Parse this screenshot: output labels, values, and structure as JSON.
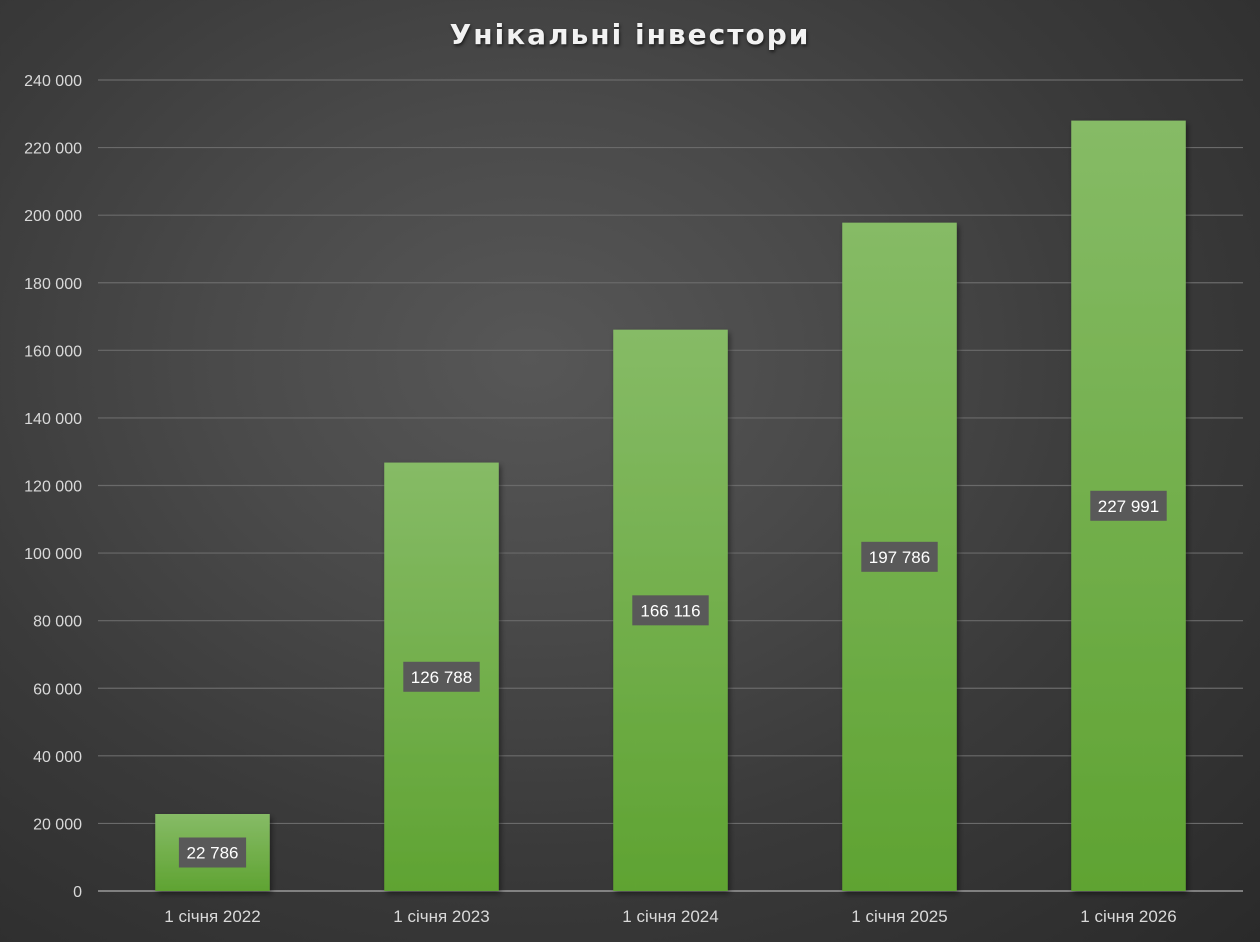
{
  "chart_data": {
    "type": "bar",
    "title": "Унікальні інвестори",
    "xlabel": "",
    "ylabel": "",
    "categories": [
      "1 січня 2022",
      "1 січня 2023",
      "1 січня 2024",
      "1 січня 2025",
      "1 січня 2026"
    ],
    "values": [
      22786,
      126788,
      166116,
      197786,
      227991
    ],
    "data_labels": [
      "22 786",
      "126 788",
      "166 116",
      "197 786",
      "227 991"
    ],
    "ylim": [
      0,
      240000
    ],
    "yticks": [
      0,
      20000,
      40000,
      60000,
      80000,
      100000,
      120000,
      140000,
      160000,
      180000,
      200000,
      220000,
      240000
    ],
    "ytick_labels": [
      "0",
      "20 000",
      "40 000",
      "60 000",
      "80 000",
      "100 000",
      "120 000",
      "140 000",
      "160 000",
      "180 000",
      "200 000",
      "220 000",
      "240 000"
    ],
    "grid": true,
    "legend": "none"
  },
  "colors": {
    "bar_top": "#86bb66",
    "bar_bottom": "#5fa332",
    "gridline": "#6a6a6a",
    "axis_line": "#9a9a9a",
    "tick_text": "#d9d9d9",
    "label_bg": "#595959",
    "label_text": "#ffffff"
  }
}
